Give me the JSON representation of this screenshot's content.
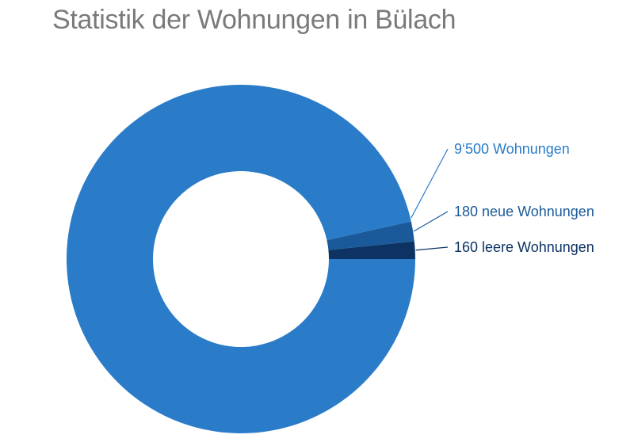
{
  "chart_data": {
    "type": "pie",
    "donut": true,
    "title": "Statistik der Wohnungen in Bülach",
    "slices": [
      {
        "label": "9‘500 Wohnungen",
        "value": 9500,
        "color": "#2a7cc9",
        "label_color": "#2a7cc9"
      },
      {
        "label": "180 neue Wohnungen",
        "value": 180,
        "color": "#1a5a9a",
        "label_color": "#1a5a9a"
      },
      {
        "label": "160 leere Wohnungen",
        "value": 160,
        "color": "#0c3363",
        "label_color": "#0c3363"
      }
    ],
    "legend": "none"
  }
}
